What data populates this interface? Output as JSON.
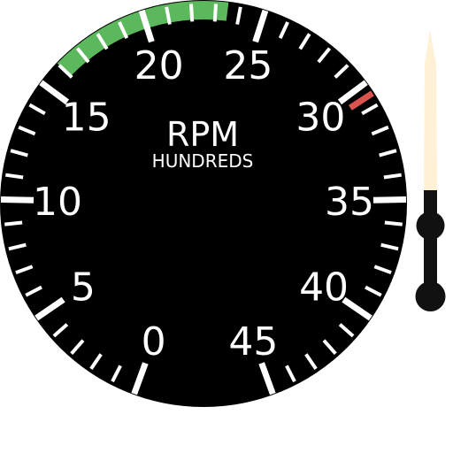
{
  "gauge": {
    "title": "RPM",
    "subtitle": "HUNDREDS",
    "scale": {
      "min": 0,
      "max": 45,
      "major_step": 5,
      "minor_step": 1
    },
    "numerals": [
      "0",
      "5",
      "10",
      "15",
      "20",
      "25",
      "30",
      "35",
      "40",
      "45"
    ],
    "green_arc": {
      "from": 16,
      "to": 23.5,
      "color": "#5cb85c"
    },
    "red_line": {
      "value": 30.5,
      "color": "#d9534f"
    },
    "dial_color": "#000000",
    "tick_color": "#ffffff"
  },
  "needle": {
    "tip_color": "#fff1d5",
    "body_color": "#111111"
  }
}
